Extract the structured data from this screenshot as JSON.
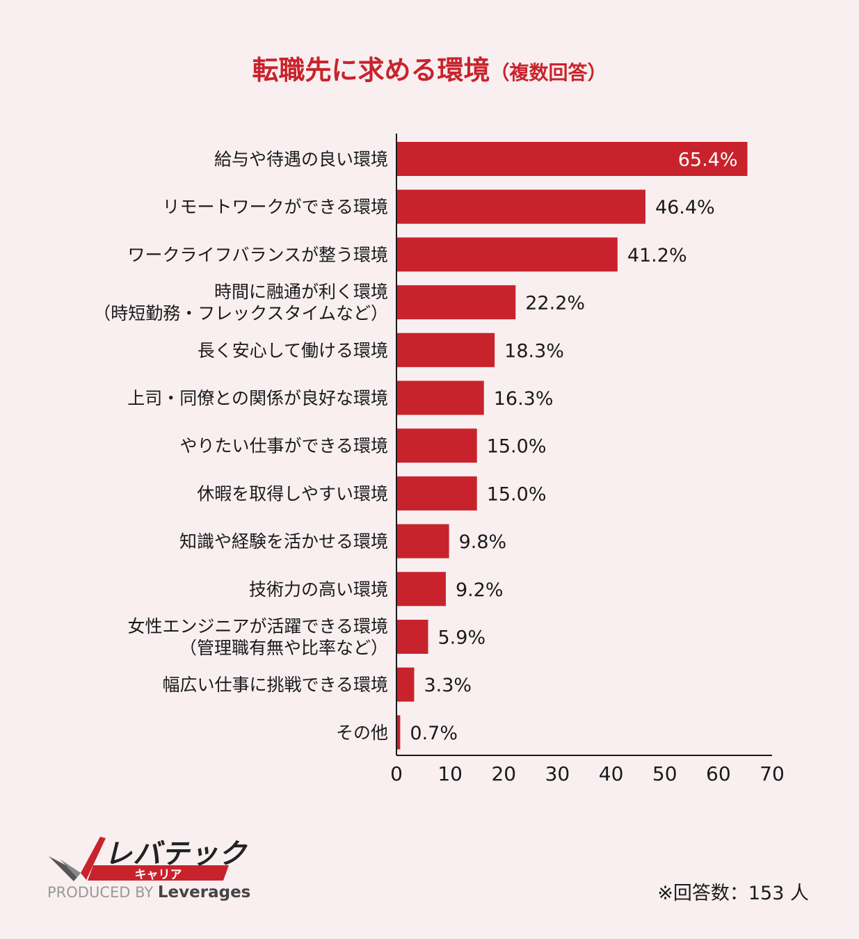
{
  "title": {
    "main": "転職先に求める環境",
    "sub": "（複数回答）"
  },
  "chart_data": {
    "type": "bar",
    "orientation": "horizontal",
    "categories": [
      [
        "給与や待遇の良い環境"
      ],
      [
        "リモートワークができる環境"
      ],
      [
        "ワークライフバランスが整う環境"
      ],
      [
        "時間に融通が利く環境",
        "（時短勤務・フレックスタイムなど）"
      ],
      [
        "長く安心して働ける環境"
      ],
      [
        "上司・同僚との関係が良好な環境"
      ],
      [
        "やりたい仕事ができる環境"
      ],
      [
        "休暇を取得しやすい環境"
      ],
      [
        "知識や経験を活かせる環境"
      ],
      [
        "技術力の高い環境"
      ],
      [
        "女性エンジニアが活躍できる環境",
        "（管理職有無や比率など）"
      ],
      [
        "幅広い仕事に挑戦できる環境"
      ],
      [
        "その他"
      ]
    ],
    "values": [
      65.4,
      46.4,
      41.2,
      22.2,
      18.3,
      16.3,
      15.0,
      15.0,
      9.8,
      9.2,
      5.9,
      3.3,
      0.7
    ],
    "value_labels": [
      "65.4%",
      "46.4%",
      "41.2%",
      "22.2%",
      "18.3%",
      "16.3%",
      "15.0%",
      "15.0%",
      "9.8%",
      "9.2%",
      "5.9%",
      "3.3%",
      "0.7%"
    ],
    "xlim": [
      0,
      70
    ],
    "xticks": [
      "0",
      "10",
      "20",
      "30",
      "40",
      "50",
      "60",
      "70"
    ],
    "bar_color": "#c8232c",
    "grid": false
  },
  "brand": {
    "name": "レバテック",
    "sub": "キャリア",
    "produced_by": "PRODUCED BY",
    "company": "Leverages"
  },
  "note": "※回答数：153 人"
}
